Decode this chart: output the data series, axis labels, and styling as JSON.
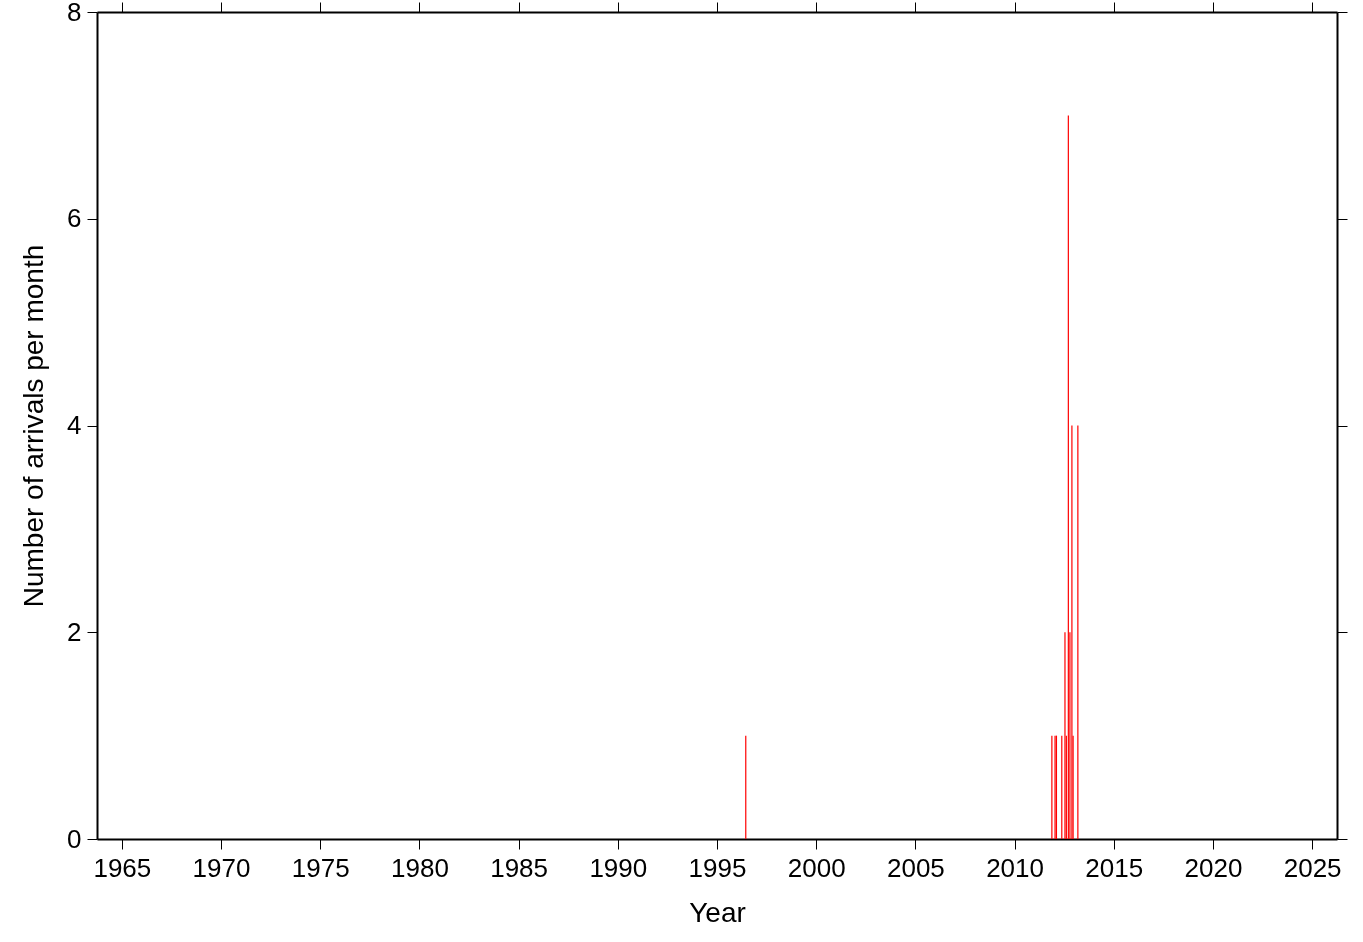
{
  "chart_data": {
    "type": "bar",
    "xlabel": "Year",
    "ylabel": "Number of arrivals per month",
    "x": [
      1996.45,
      2011.88,
      2012.04,
      2012.11,
      2012.38,
      2012.54,
      2012.61,
      2012.71,
      2012.79,
      2012.89,
      2012.95,
      2013.19
    ],
    "values": [
      1,
      1,
      1,
      1,
      1,
      2,
      1,
      7,
      2,
      4,
      1,
      4
    ],
    "color": "#ff0000",
    "xlim": [
      1964,
      2026
    ],
    "xticks": [
      1965,
      1970,
      1975,
      1980,
      1985,
      1990,
      1995,
      2000,
      2005,
      2010,
      2015,
      2020,
      2025
    ],
    "ylim": [
      0,
      8
    ],
    "yticks": [
      0,
      2,
      4,
      6,
      8
    ],
    "grid": false
  }
}
